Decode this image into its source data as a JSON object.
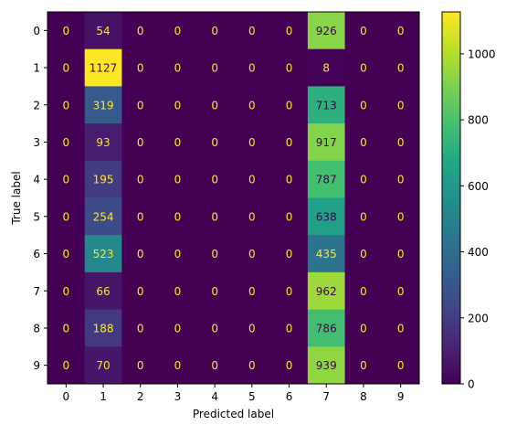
{
  "chart_data": {
    "type": "heatmap",
    "xlabel": "Predicted label",
    "ylabel": "True label",
    "x_tick_labels": [
      "0",
      "1",
      "2",
      "3",
      "4",
      "5",
      "6",
      "7",
      "8",
      "9"
    ],
    "y_tick_labels": [
      "0",
      "1",
      "2",
      "3",
      "4",
      "5",
      "6",
      "7",
      "8",
      "9"
    ],
    "matrix": [
      [
        0,
        54,
        0,
        0,
        0,
        0,
        0,
        926,
        0,
        0
      ],
      [
        0,
        1127,
        0,
        0,
        0,
        0,
        0,
        8,
        0,
        0
      ],
      [
        0,
        319,
        0,
        0,
        0,
        0,
        0,
        713,
        0,
        0
      ],
      [
        0,
        93,
        0,
        0,
        0,
        0,
        0,
        917,
        0,
        0
      ],
      [
        0,
        195,
        0,
        0,
        0,
        0,
        0,
        787,
        0,
        0
      ],
      [
        0,
        254,
        0,
        0,
        0,
        0,
        0,
        638,
        0,
        0
      ],
      [
        0,
        523,
        0,
        0,
        0,
        0,
        0,
        435,
        0,
        0
      ],
      [
        0,
        66,
        0,
        0,
        0,
        0,
        0,
        962,
        0,
        0
      ],
      [
        0,
        188,
        0,
        0,
        0,
        0,
        0,
        786,
        0,
        0
      ],
      [
        0,
        70,
        0,
        0,
        0,
        0,
        0,
        939,
        0,
        0
      ]
    ],
    "colormap": "viridis",
    "colorbar": {
      "range": [
        0,
        1127
      ],
      "ticks": [
        0,
        200,
        400,
        600,
        800,
        1000
      ]
    },
    "text_color_light": "#fde725",
    "text_color_dark": "#440154"
  }
}
